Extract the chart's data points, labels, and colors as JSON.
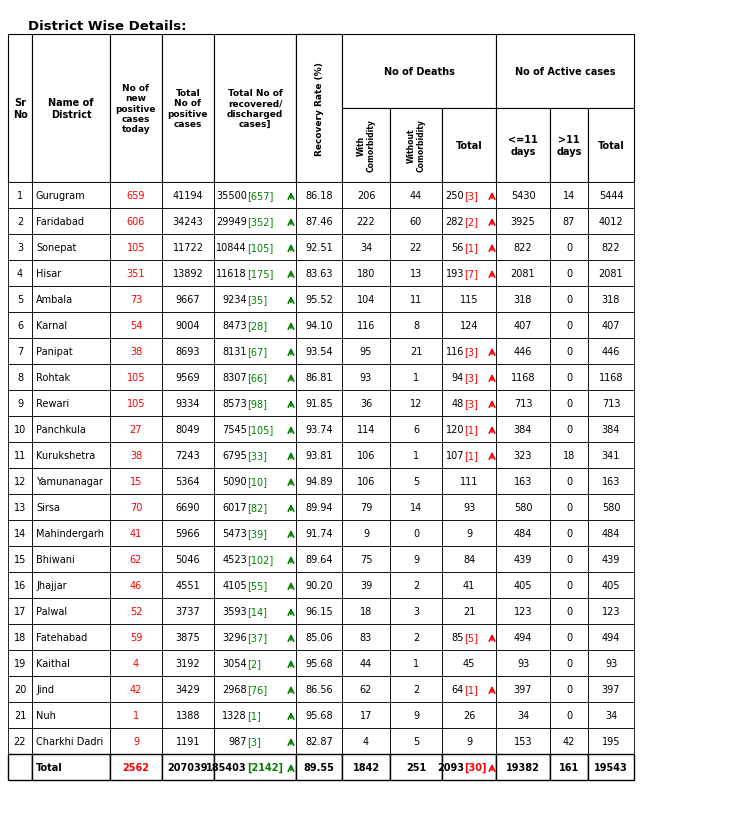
{
  "title": "District Wise Details:",
  "rows": [
    [
      1,
      "Gurugram",
      "659",
      "41194",
      "35500",
      "657",
      86.18,
      206,
      44,
      "250",
      "3",
      true,
      5430,
      14,
      5444
    ],
    [
      2,
      "Faridabad",
      "606",
      "34243",
      "29949",
      "352",
      87.46,
      222,
      60,
      "282",
      "2",
      true,
      3925,
      87,
      4012
    ],
    [
      3,
      "Sonepat",
      "105",
      "11722",
      "10844",
      "105",
      92.51,
      34,
      22,
      "56",
      "1",
      true,
      822,
      0,
      822
    ],
    [
      4,
      "Hisar",
      "351",
      "13892",
      "11618",
      "175",
      83.63,
      180,
      13,
      "193",
      "7",
      true,
      2081,
      0,
      2081
    ],
    [
      5,
      "Ambala",
      "73",
      "9667",
      "9234",
      "35",
      95.52,
      104,
      11,
      "115",
      "",
      false,
      318,
      0,
      318
    ],
    [
      6,
      "Karnal",
      "54",
      "9004",
      "8473",
      "28",
      94.1,
      116,
      8,
      "124",
      "",
      false,
      407,
      0,
      407
    ],
    [
      7,
      "Panipat",
      "38",
      "8693",
      "8131",
      "67",
      93.54,
      95,
      21,
      "116",
      "3",
      true,
      446,
      0,
      446
    ],
    [
      8,
      "Rohtak",
      "105",
      "9569",
      "8307",
      "66",
      86.81,
      93,
      1,
      "94",
      "3",
      true,
      1168,
      0,
      1168
    ],
    [
      9,
      "Rewari",
      "105",
      "9334",
      "8573",
      "98",
      91.85,
      36,
      12,
      "48",
      "3",
      true,
      713,
      0,
      713
    ],
    [
      10,
      "Panchkula",
      "27",
      "8049",
      "7545",
      "105",
      93.74,
      114,
      6,
      "120",
      "1",
      true,
      384,
      0,
      384
    ],
    [
      11,
      "Kurukshetra",
      "38",
      "7243",
      "6795",
      "33",
      93.81,
      106,
      1,
      "107",
      "1",
      true,
      323,
      18,
      341
    ],
    [
      12,
      "Yamunanagar",
      "15",
      "5364",
      "5090",
      "10",
      94.89,
      106,
      5,
      "111",
      "",
      false,
      163,
      0,
      163
    ],
    [
      13,
      "Sirsa",
      "70",
      "6690",
      "6017",
      "82",
      89.94,
      79,
      14,
      "93",
      "",
      false,
      580,
      0,
      580
    ],
    [
      14,
      "Mahindergarh",
      "41",
      "5966",
      "5473",
      "39",
      91.74,
      9,
      0,
      "9",
      "",
      false,
      484,
      0,
      484
    ],
    [
      15,
      "Bhiwani",
      "62",
      "5046",
      "4523",
      "102",
      89.64,
      75,
      9,
      "84",
      "",
      false,
      439,
      0,
      439
    ],
    [
      16,
      "Jhajjar",
      "46",
      "4551",
      "4105",
      "55",
      90.2,
      39,
      2,
      "41",
      "",
      false,
      405,
      0,
      405
    ],
    [
      17,
      "Palwal",
      "52",
      "3737",
      "3593",
      "14",
      96.15,
      18,
      3,
      "21",
      "",
      false,
      123,
      0,
      123
    ],
    [
      18,
      "Fatehabad",
      "59",
      "3875",
      "3296",
      "37",
      85.06,
      83,
      2,
      "85",
      "5",
      true,
      494,
      0,
      494
    ],
    [
      19,
      "Kaithal",
      "4",
      "3192",
      "3054",
      "2",
      95.68,
      44,
      1,
      "45",
      "",
      false,
      93,
      0,
      93
    ],
    [
      20,
      "Jind",
      "42",
      "3429",
      "2968",
      "76",
      86.56,
      62,
      2,
      "64",
      "1",
      true,
      397,
      0,
      397
    ],
    [
      21,
      "Nuh",
      "1",
      "1388",
      "1328",
      "1",
      95.68,
      17,
      9,
      "26",
      "",
      false,
      34,
      0,
      34
    ],
    [
      22,
      "Charkhi Dadri",
      "9",
      "1191",
      "987",
      "3",
      82.87,
      4,
      5,
      "9",
      "",
      false,
      153,
      42,
      195
    ]
  ],
  "total_row": [
    "",
    "Total",
    "2562",
    "207039",
    "185403",
    "2142",
    89.55,
    1842,
    251,
    "2093",
    "30",
    true,
    19382,
    161,
    19543
  ],
  "red_color": "#ff0000",
  "green_color": "#008000",
  "black_color": "#000000",
  "border_color": "#000000"
}
